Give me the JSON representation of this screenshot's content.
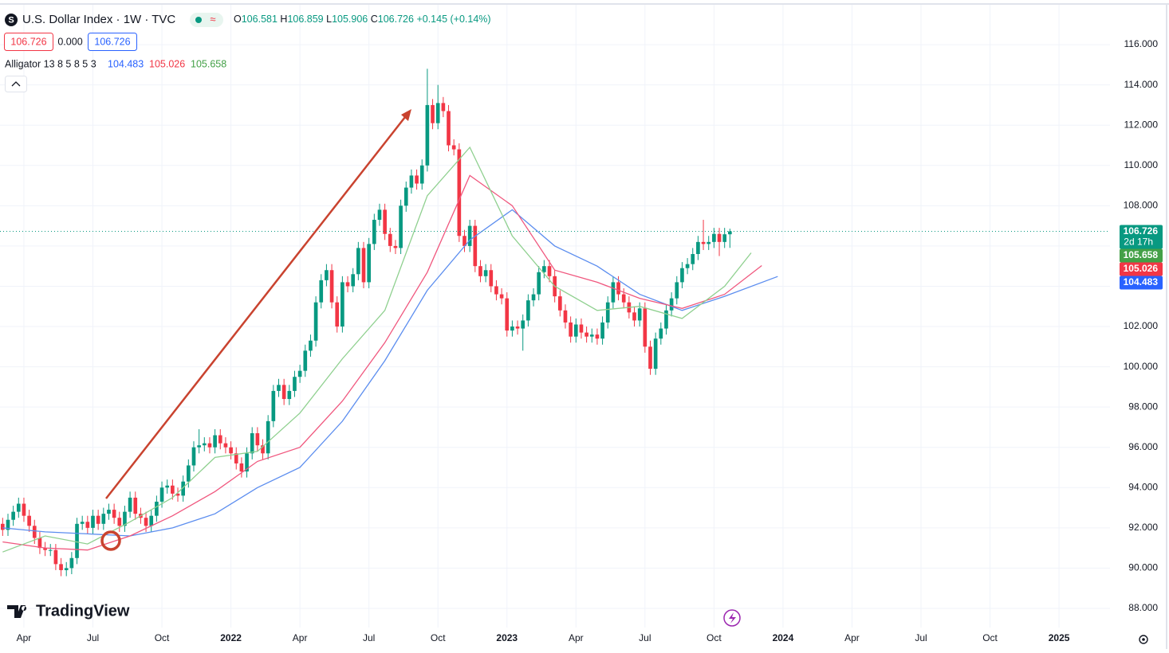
{
  "header": {
    "symbol_title": "U.S. Dollar Index · 1W · TVC",
    "ohlc": [
      {
        "key": "O",
        "value": "106.581"
      },
      {
        "key": "H",
        "value": "106.859"
      },
      {
        "key": "L",
        "value": "105.906"
      },
      {
        "key": "C",
        "value": "106.726"
      }
    ],
    "change": "+0.145 (+0.14%)",
    "price_boxes": [
      "106.726",
      "0.000",
      "106.726"
    ],
    "indicator": "Alligator 13 8 5 8 5 3",
    "indicator_values": [
      "104.483",
      "105.026",
      "105.658"
    ],
    "branding": "TradingView"
  },
  "chart_data": {
    "type": "candlestick",
    "up_color": "#089981",
    "down_color": "#f23645",
    "grid": true,
    "xlim": [
      8.5,
      217.6
    ],
    "ylim": [
      87.05,
      118.02
    ],
    "xticks": [
      {
        "value": 13,
        "label": "Apr"
      },
      {
        "value": 26,
        "label": "Jul"
      },
      {
        "value": 39,
        "label": "Oct"
      },
      {
        "value": 52,
        "label": "2022"
      },
      {
        "value": 65,
        "label": "Apr"
      },
      {
        "value": 78,
        "label": "Jul"
      },
      {
        "value": 91,
        "label": "Oct"
      },
      {
        "value": 104,
        "label": "2023"
      },
      {
        "value": 117,
        "label": "Apr"
      },
      {
        "value": 130,
        "label": "Jul"
      },
      {
        "value": 143,
        "label": "Oct"
      },
      {
        "value": 156,
        "label": "2024"
      },
      {
        "value": 169,
        "label": "Apr"
      },
      {
        "value": 182,
        "label": "Jul"
      },
      {
        "value": 195,
        "label": "Oct"
      },
      {
        "value": 208,
        "label": "2025"
      }
    ],
    "yticks": [
      {
        "value": 88,
        "label": "88.000"
      },
      {
        "value": 90,
        "label": "90.000"
      },
      {
        "value": 92,
        "label": "92.000"
      },
      {
        "value": 94,
        "label": "94.000"
      },
      {
        "value": 96,
        "label": "96.000"
      },
      {
        "value": 98,
        "label": "98.000"
      },
      {
        "value": 100,
        "label": "100.000"
      },
      {
        "value": 102,
        "label": "102.000"
      },
      {
        "value": 104,
        "label": "104.000"
      },
      {
        "value": 106,
        "label": "106.000"
      },
      {
        "value": 108,
        "label": "108.000"
      },
      {
        "value": 110,
        "label": "110.000"
      },
      {
        "value": 112,
        "label": "112.000"
      },
      {
        "value": 114,
        "label": "114.000"
      },
      {
        "value": 116,
        "label": "116.000"
      }
    ],
    "x": [
      9,
      10,
      11,
      12,
      13,
      14,
      15,
      16,
      17,
      18,
      19,
      20,
      21,
      22,
      23,
      24,
      25,
      26,
      27,
      28,
      29,
      30,
      31,
      32,
      33,
      34,
      35,
      36,
      37,
      38,
      39,
      40,
      41,
      42,
      43,
      44,
      45,
      46,
      47,
      48,
      49,
      50,
      51,
      52,
      53,
      54,
      55,
      56,
      57,
      58,
      59,
      60,
      61,
      62,
      63,
      64,
      65,
      66,
      67,
      68,
      69,
      70,
      71,
      72,
      73,
      74,
      75,
      76,
      77,
      78,
      79,
      80,
      81,
      82,
      83,
      84,
      85,
      86,
      87,
      88,
      89,
      90,
      91,
      92,
      93,
      94,
      95,
      96,
      97,
      98,
      99,
      100,
      101,
      102,
      103,
      104,
      105,
      106,
      107,
      108,
      109,
      110,
      111,
      112,
      113,
      114,
      115,
      116,
      117,
      118,
      119,
      120,
      121,
      122,
      123,
      124,
      125,
      126,
      127,
      128,
      129,
      130,
      131,
      132,
      133,
      134,
      135,
      136,
      137,
      138,
      139,
      140,
      141,
      142,
      143,
      144,
      145,
      146
    ],
    "open": [
      92.2,
      91.9,
      92.4,
      92.8,
      93.2,
      92.6,
      92.1,
      91.5,
      91.0,
      90.9,
      90.9,
      90.2,
      89.9,
      90.0,
      90.5,
      92.2,
      92.3,
      92.0,
      92.6,
      92.2,
      92.7,
      92.9,
      92.5,
      92.1,
      92.8,
      93.5,
      92.7,
      92.5,
      92.1,
      92.6,
      93.3,
      94.0,
      94.1,
      93.7,
      93.6,
      94.3,
      95.1,
      96.0,
      96.1,
      96.2,
      96.0,
      96.6,
      96.2,
      96.0,
      95.7,
      95.2,
      94.8,
      95.7,
      96.7,
      96.1,
      95.7,
      97.3,
      98.8,
      99.1,
      98.4,
      98.8,
      99.5,
      99.8,
      100.8,
      101.3,
      103.2,
      104.3,
      104.8,
      103.2,
      102.0,
      104.2,
      104.0,
      104.6,
      105.9,
      104.2,
      106.1,
      107.3,
      107.8,
      106.6,
      106.0,
      105.9,
      108.0,
      108.9,
      109.5,
      109.1,
      110.0,
      113.0,
      112.1,
      113.1,
      112.7,
      111.0,
      110.8,
      106.5,
      106.0,
      107.0,
      105.0,
      104.5,
      104.8,
      104.0,
      103.6,
      103.4,
      101.8,
      102.0,
      101.9,
      102.3,
      103.3,
      103.6,
      104.7,
      105.0,
      104.5,
      103.5,
      102.8,
      102.2,
      101.5,
      102.1,
      101.7,
      101.5,
      101.6,
      101.4,
      102.2,
      103.2,
      104.2,
      103.6,
      103.2,
      102.7,
      102.3,
      102.9,
      101.0,
      99.9,
      101.4,
      101.9,
      102.8,
      103.4,
      104.2,
      104.9,
      105.1,
      105.6,
      106.2,
      106.1,
      106.2,
      106.6,
      106.2,
      106.581
    ],
    "high": [
      92.5,
      92.7,
      93.1,
      93.5,
      93.5,
      92.9,
      92.4,
      91.8,
      91.3,
      91.2,
      91.2,
      90.5,
      90.3,
      90.8,
      92.5,
      92.6,
      92.6,
      92.9,
      92.9,
      93.0,
      93.2,
      93.2,
      92.8,
      93.1,
      93.8,
      93.8,
      93.0,
      92.8,
      92.9,
      93.6,
      94.3,
      94.4,
      94.4,
      94.0,
      94.6,
      95.4,
      96.3,
      96.9,
      96.5,
      96.5,
      96.9,
      96.9,
      96.5,
      96.3,
      96.0,
      95.5,
      96.0,
      97.0,
      97.0,
      96.4,
      97.6,
      99.1,
      99.4,
      99.4,
      99.1,
      99.8,
      100.1,
      101.1,
      101.6,
      103.5,
      104.6,
      105.1,
      105.1,
      103.5,
      104.5,
      104.5,
      104.9,
      106.2,
      106.2,
      106.4,
      107.6,
      108.1,
      108.1,
      106.9,
      106.3,
      108.3,
      109.2,
      109.8,
      109.8,
      110.3,
      114.8,
      113.3,
      114.0,
      113.4,
      113.0,
      111.3,
      111.1,
      106.8,
      107.3,
      107.3,
      105.3,
      105.1,
      105.1,
      104.3,
      103.9,
      103.7,
      102.3,
      102.3,
      102.6,
      103.6,
      103.9,
      105.0,
      105.3,
      105.3,
      104.8,
      103.8,
      103.1,
      102.5,
      102.4,
      102.4,
      102.0,
      101.9,
      101.9,
      102.5,
      103.5,
      104.5,
      104.5,
      103.9,
      103.5,
      103.0,
      103.2,
      103.2,
      101.3,
      101.7,
      102.2,
      103.1,
      103.7,
      104.5,
      105.2,
      105.4,
      105.9,
      106.5,
      107.3,
      106.5,
      106.9,
      106.9,
      106.9,
      106.859
    ],
    "low": [
      91.6,
      91.6,
      92.1,
      92.5,
      92.3,
      91.8,
      91.2,
      90.7,
      90.6,
      90.6,
      89.9,
      89.6,
      89.6,
      89.7,
      90.2,
      91.9,
      91.7,
      91.7,
      91.9,
      91.9,
      92.4,
      92.2,
      91.8,
      91.8,
      92.5,
      92.4,
      92.2,
      91.8,
      91.8,
      92.3,
      93.0,
      93.7,
      93.4,
      93.3,
      93.3,
      94.0,
      94.8,
      95.7,
      95.8,
      95.7,
      95.7,
      95.9,
      95.7,
      95.4,
      94.9,
      94.5,
      94.5,
      95.4,
      95.8,
      95.4,
      95.4,
      97.0,
      98.5,
      98.1,
      98.1,
      98.5,
      99.2,
      99.5,
      100.5,
      101.0,
      102.9,
      104.0,
      102.9,
      101.7,
      101.7,
      103.7,
      103.7,
      104.3,
      103.9,
      103.9,
      105.8,
      107.0,
      106.3,
      105.7,
      105.6,
      105.6,
      107.7,
      108.6,
      108.8,
      108.8,
      109.7,
      111.8,
      111.8,
      112.4,
      110.7,
      110.5,
      106.2,
      105.7,
      105.7,
      104.7,
      104.2,
      104.2,
      103.7,
      103.3,
      103.1,
      101.5,
      101.5,
      101.6,
      100.8,
      102.0,
      103.0,
      103.3,
      104.4,
      104.2,
      103.2,
      102.5,
      101.9,
      101.2,
      101.2,
      101.4,
      101.2,
      101.2,
      101.1,
      101.1,
      101.9,
      102.9,
      103.3,
      102.9,
      102.4,
      102.0,
      102.0,
      100.7,
      99.6,
      99.6,
      101.1,
      101.6,
      102.5,
      103.1,
      103.9,
      104.6,
      104.8,
      105.3,
      105.8,
      105.8,
      105.9,
      105.5,
      105.9,
      105.906
    ],
    "close": [
      91.9,
      92.4,
      92.8,
      93.2,
      92.6,
      92.1,
      91.5,
      91.0,
      90.9,
      90.9,
      90.2,
      89.9,
      90.0,
      90.5,
      92.2,
      92.3,
      92.0,
      92.6,
      92.2,
      92.7,
      92.9,
      92.5,
      92.1,
      92.8,
      93.5,
      92.7,
      92.5,
      92.1,
      92.6,
      93.3,
      94.0,
      94.1,
      93.7,
      93.6,
      94.3,
      95.1,
      96.0,
      96.1,
      96.2,
      96.0,
      96.6,
      96.2,
      96.0,
      95.7,
      95.2,
      94.8,
      95.7,
      96.7,
      96.1,
      95.7,
      97.3,
      98.8,
      99.1,
      98.4,
      98.8,
      99.5,
      99.8,
      100.8,
      101.3,
      103.2,
      104.3,
      104.8,
      103.2,
      102.0,
      104.2,
      104.0,
      104.6,
      105.9,
      104.2,
      106.1,
      107.3,
      107.8,
      106.6,
      106.0,
      105.9,
      108.0,
      108.9,
      109.5,
      109.1,
      110.0,
      113.0,
      112.1,
      113.1,
      112.7,
      111.0,
      110.8,
      106.5,
      106.0,
      107.0,
      105.0,
      104.5,
      104.8,
      104.0,
      103.6,
      103.4,
      101.8,
      102.0,
      101.9,
      102.3,
      103.3,
      103.6,
      104.7,
      105.0,
      104.5,
      103.5,
      102.8,
      102.2,
      101.5,
      102.1,
      101.7,
      101.5,
      101.6,
      101.4,
      102.2,
      103.2,
      104.2,
      103.6,
      103.2,
      102.7,
      102.3,
      102.9,
      101.0,
      99.9,
      101.4,
      101.9,
      102.8,
      103.4,
      104.2,
      104.9,
      105.1,
      105.6,
      106.2,
      106.1,
      106.2,
      106.6,
      106.2,
      106.581,
      106.726
    ],
    "lines": [
      {
        "color": "#5b8def",
        "x": [
          9,
          17,
          25,
          33,
          41,
          49,
          57,
          65,
          73,
          81,
          89,
          97,
          105,
          113,
          121,
          129,
          137,
          145,
          155
        ],
        "values": [
          92.0,
          91.8,
          91.7,
          91.6,
          92.0,
          92.7,
          94.0,
          95.0,
          97.3,
          100.3,
          103.8,
          106.3,
          107.8,
          106.0,
          105.0,
          103.6,
          102.8,
          103.5,
          104.483
        ]
      },
      {
        "color": "#f0577e",
        "x": [
          9,
          17,
          25,
          33,
          41,
          49,
          57,
          65,
          73,
          81,
          89,
          97,
          105,
          113,
          121,
          129,
          137,
          145,
          152
        ],
        "values": [
          91.3,
          91.0,
          90.9,
          91.6,
          92.6,
          93.8,
          95.3,
          96.0,
          98.3,
          101.2,
          104.7,
          109.5,
          108.0,
          104.8,
          104.2,
          103.4,
          102.9,
          103.6,
          105.026
        ]
      },
      {
        "color": "#8fd08f",
        "x": [
          9,
          17,
          25,
          33,
          41,
          49,
          57,
          65,
          73,
          81,
          89,
          97,
          105,
          113,
          121,
          129,
          137,
          145,
          150
        ],
        "values": [
          90.8,
          91.6,
          91.2,
          92.3,
          93.5,
          95.5,
          95.8,
          97.7,
          100.4,
          102.8,
          108.5,
          110.9,
          106.5,
          104.0,
          102.8,
          103.0,
          102.4,
          104.0,
          105.658
        ]
      }
    ],
    "price_labels": [
      {
        "value": 106.726,
        "label": "106.726",
        "color": "#089981"
      },
      {
        "value": 105.658,
        "label": "105.658",
        "color": "#43a047"
      },
      {
        "value": 105.026,
        "label": "105.026",
        "color": "#f23645"
      },
      {
        "value": 104.483,
        "label": "104.483",
        "color": "#2962ff"
      }
    ],
    "countdown": "2d 17h"
  }
}
